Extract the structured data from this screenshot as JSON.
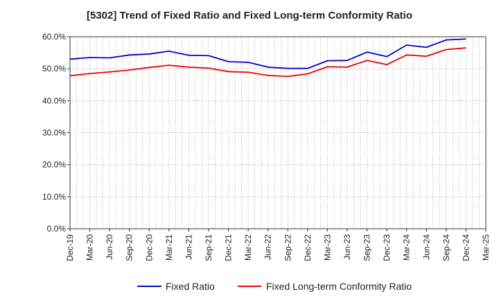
{
  "chart_data": {
    "type": "line",
    "title": "[5302]  Trend of Fixed Ratio and Fixed Long-term Conformity Ratio",
    "xlabel": "",
    "ylabel": "",
    "ylim": [
      0,
      60
    ],
    "y_ticks": [
      "0.0%",
      "10.0%",
      "20.0%",
      "30.0%",
      "40.0%",
      "50.0%",
      "60.0%"
    ],
    "y_tick_values": [
      0,
      10,
      20,
      30,
      40,
      50,
      60
    ],
    "x_tick_labels": [
      "Dec-19",
      "Mar-20",
      "Jun-20",
      "Sep-20",
      "Dec-20",
      "Mar-21",
      "Jun-21",
      "Sep-21",
      "Dec-21",
      "Mar-22",
      "Jun-22",
      "Sep-22",
      "Dec-22",
      "Mar-23",
      "Jun-23",
      "Sep-23",
      "Dec-23",
      "Mar-24",
      "Jun-24",
      "Sep-24",
      "Dec-24",
      "Mar-25"
    ],
    "categories": [
      "Dec-19",
      "Mar-20",
      "Jun-20",
      "Sep-20",
      "Dec-20",
      "Mar-21",
      "Jun-21",
      "Sep-21",
      "Dec-21",
      "Mar-22",
      "Jun-22",
      "Sep-22",
      "Dec-22",
      "Mar-23",
      "Jun-23",
      "Sep-23",
      "Dec-23",
      "Mar-24",
      "Jun-24",
      "Sep-24",
      "Dec-24"
    ],
    "series": [
      {
        "name": "Fixed Ratio",
        "color": "#0000cc",
        "values": [
          53.0,
          53.5,
          53.4,
          54.3,
          54.6,
          55.5,
          54.2,
          54.1,
          52.2,
          52.0,
          50.5,
          50.1,
          50.1,
          52.5,
          52.6,
          55.2,
          53.8,
          57.4,
          56.7,
          59.0,
          59.3
        ]
      },
      {
        "name": "Fixed Long-term Conformity Ratio",
        "color": "#ee0000",
        "values": [
          47.8,
          48.5,
          49.0,
          49.6,
          50.4,
          51.1,
          50.5,
          50.2,
          49.1,
          48.9,
          47.9,
          47.6,
          48.4,
          50.6,
          50.5,
          52.6,
          51.3,
          54.3,
          53.9,
          56.0,
          56.5
        ]
      }
    ],
    "grid": true,
    "legend_position": "bottom"
  }
}
